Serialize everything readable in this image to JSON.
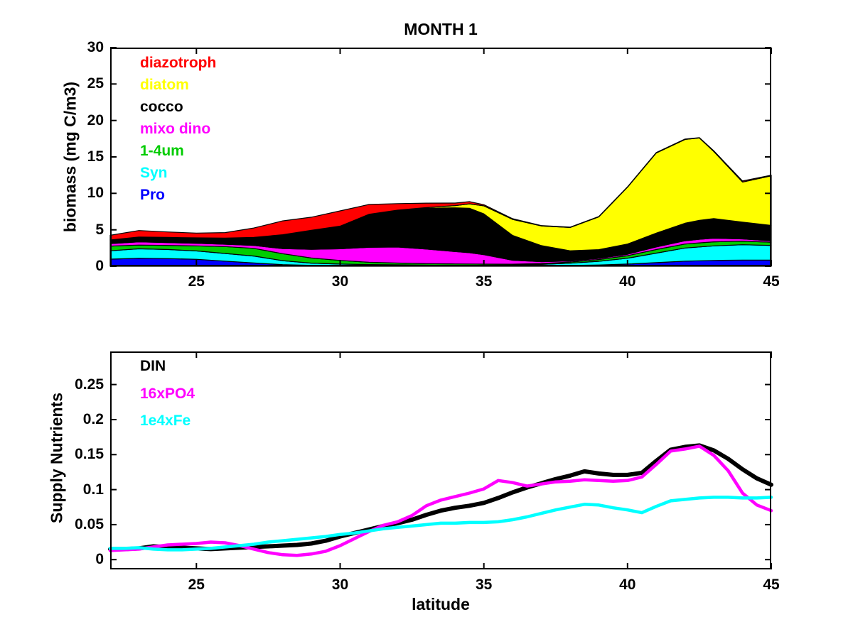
{
  "figure": {
    "background": "#FFFFFF",
    "frame_color": "#000000"
  },
  "chart_data": [
    {
      "type": "area",
      "stacked": true,
      "title": "MONTH 1",
      "ylabel": "biomass (mg C/m3)",
      "xlabel": "",
      "xlim": [
        22,
        45
      ],
      "ylim": [
        0,
        30
      ],
      "grid": false,
      "legend_position": "upper-left",
      "xticks": [
        25,
        30,
        35,
        40,
        45
      ],
      "xtick_labels": [
        "25",
        "30",
        "35",
        "40",
        "45"
      ],
      "yticks": [
        0,
        5,
        10,
        15,
        20,
        25,
        30
      ],
      "ytick_labels": [
        "0",
        "5",
        "10",
        "15",
        "20",
        "25",
        "30"
      ],
      "edge_color": "#000000",
      "x": [
        22,
        23,
        24,
        25,
        26,
        27,
        28,
        29,
        30,
        31,
        32,
        33,
        34,
        34.5,
        35,
        36,
        37,
        38,
        39,
        40,
        41,
        42,
        42.5,
        43,
        44,
        45
      ],
      "series": [
        {
          "name": "Pro",
          "color": "#0000FF",
          "values": [
            0.97,
            1.1,
            1.05,
            0.95,
            0.7,
            0.45,
            0.22,
            0.13,
            0.1,
            0.08,
            0.07,
            0.06,
            0.06,
            0.06,
            0.06,
            0.06,
            0.08,
            0.12,
            0.18,
            0.3,
            0.5,
            0.7,
            0.75,
            0.8,
            0.85,
            0.85
          ]
        },
        {
          "name": "Syn",
          "color": "#00FFFF",
          "values": [
            1.15,
            1.3,
            1.25,
            1.15,
            1.05,
            0.95,
            0.55,
            0.3,
            0.2,
            0.15,
            0.12,
            0.1,
            0.08,
            0.08,
            0.08,
            0.1,
            0.18,
            0.3,
            0.5,
            0.8,
            1.3,
            1.8,
            1.9,
            2.0,
            2.1,
            2.0
          ]
        },
        {
          "name": "1-4um",
          "color": "#00CC00",
          "values": [
            0.65,
            0.5,
            0.55,
            0.7,
            0.95,
            1.05,
            0.95,
            0.7,
            0.5,
            0.32,
            0.25,
            0.2,
            0.18,
            0.17,
            0.15,
            0.12,
            0.12,
            0.15,
            0.25,
            0.35,
            0.5,
            0.55,
            0.55,
            0.55,
            0.5,
            0.45
          ]
        },
        {
          "name": "mixo dino",
          "color": "#FF00FF",
          "values": [
            0.33,
            0.45,
            0.4,
            0.35,
            0.32,
            0.4,
            0.7,
            1.2,
            1.6,
            2.05,
            2.2,
            2.0,
            1.7,
            1.55,
            1.3,
            0.55,
            0.25,
            0.15,
            0.15,
            0.2,
            0.35,
            0.45,
            0.5,
            0.5,
            0.3,
            0.2
          ]
        },
        {
          "name": "cocco",
          "color": "#000000",
          "values": [
            0.5,
            0.65,
            0.7,
            0.75,
            0.85,
            1.1,
            1.9,
            2.6,
            3.1,
            4.5,
            5.0,
            5.6,
            6.0,
            6.1,
            5.6,
            3.4,
            2.2,
            1.4,
            1.2,
            1.4,
            1.9,
            2.4,
            2.6,
            2.7,
            2.3,
            2.1
          ]
        },
        {
          "name": "diatom",
          "color": "#FFFF00",
          "values": [
            0,
            0,
            0,
            0,
            0,
            0,
            0,
            0,
            0,
            0.02,
            0.05,
            0.1,
            0.3,
            0.6,
            1.1,
            2.2,
            2.7,
            3.2,
            4.5,
            7.8,
            11.0,
            11.5,
            11.3,
            9.2,
            5.5,
            6.8
          ]
        },
        {
          "name": "diazotroph",
          "color": "#FF0000",
          "values": [
            0.65,
            0.9,
            0.75,
            0.65,
            0.75,
            1.3,
            1.9,
            1.8,
            2.1,
            1.35,
            0.9,
            0.6,
            0.35,
            0.3,
            0.15,
            0.1,
            0.05,
            0.05,
            0.05,
            0.05,
            0.05,
            0.05,
            0.05,
            0.1,
            0.15,
            0.1
          ]
        }
      ],
      "legend": [
        {
          "label": "diazotroph",
          "color": "#FF0000"
        },
        {
          "label": "diatom",
          "color": "#FFFF00"
        },
        {
          "label": "cocco",
          "color": "#000000"
        },
        {
          "label": "mixo dino",
          "color": "#FF00FF"
        },
        {
          "label": "1-4um",
          "color": "#00CC00"
        },
        {
          "label": "Syn",
          "color": "#00FFFF"
        },
        {
          "label": "Pro",
          "color": "#0000FF"
        }
      ]
    },
    {
      "type": "line",
      "title": "",
      "ylabel": "Supply Nutrients",
      "xlabel": "latitude",
      "xlim": [
        22,
        45
      ],
      "ylim": [
        -0.014,
        0.2973
      ],
      "grid": false,
      "legend_position": "upper-left",
      "xticks": [
        25,
        30,
        35,
        40,
        45
      ],
      "xtick_labels": [
        "25",
        "30",
        "35",
        "40",
        "45"
      ],
      "yticks": [
        0,
        0.05,
        0.1,
        0.15,
        0.2,
        0.25
      ],
      "ytick_labels": [
        "0",
        "0.05",
        "0.1",
        "0.15",
        "0.2",
        "0.25"
      ],
      "x": [
        22,
        22.5,
        23,
        23.5,
        24,
        24.5,
        25,
        25.5,
        26,
        26.5,
        27,
        27.5,
        28,
        28.5,
        29,
        29.5,
        30,
        30.5,
        31,
        31.5,
        32,
        32.5,
        33,
        33.5,
        34,
        34.5,
        35,
        35.5,
        36,
        36.5,
        37,
        37.5,
        38,
        38.5,
        39,
        39.5,
        40,
        40.5,
        41,
        41.5,
        42,
        42.5,
        43,
        43.5,
        44,
        44.5,
        45
      ],
      "series": [
        {
          "name": "DIN",
          "color": "#000000",
          "line_width": 6,
          "values": [
            0.015,
            0.015,
            0.016,
            0.019,
            0.018,
            0.017,
            0.016,
            0.015,
            0.016,
            0.017,
            0.018,
            0.019,
            0.02,
            0.021,
            0.023,
            0.027,
            0.033,
            0.038,
            0.043,
            0.048,
            0.052,
            0.057,
            0.064,
            0.07,
            0.074,
            0.077,
            0.081,
            0.088,
            0.096,
            0.103,
            0.109,
            0.115,
            0.12,
            0.126,
            0.123,
            0.121,
            0.121,
            0.124,
            0.141,
            0.157,
            0.161,
            0.163,
            0.156,
            0.144,
            0.129,
            0.116,
            0.107
          ]
        },
        {
          "name": "16xPO4",
          "color": "#FF00FF",
          "line_width": 4.5,
          "values": [
            0.013,
            0.014,
            0.015,
            0.018,
            0.021,
            0.022,
            0.023,
            0.025,
            0.024,
            0.02,
            0.015,
            0.01,
            0.007,
            0.006,
            0.008,
            0.012,
            0.02,
            0.03,
            0.04,
            0.049,
            0.054,
            0.063,
            0.077,
            0.085,
            0.09,
            0.095,
            0.101,
            0.113,
            0.11,
            0.105,
            0.108,
            0.111,
            0.112,
            0.114,
            0.113,
            0.112,
            0.113,
            0.118,
            0.136,
            0.155,
            0.158,
            0.162,
            0.149,
            0.127,
            0.095,
            0.078,
            0.07
          ]
        },
        {
          "name": "1e4xFe",
          "color": "#00FFFF",
          "line_width": 4.5,
          "values": [
            0.016,
            0.016,
            0.017,
            0.015,
            0.014,
            0.014,
            0.015,
            0.016,
            0.018,
            0.02,
            0.022,
            0.025,
            0.027,
            0.029,
            0.031,
            0.033,
            0.036,
            0.038,
            0.041,
            0.044,
            0.046,
            0.048,
            0.05,
            0.052,
            0.052,
            0.053,
            0.053,
            0.054,
            0.057,
            0.061,
            0.066,
            0.071,
            0.075,
            0.079,
            0.078,
            0.074,
            0.071,
            0.067,
            0.076,
            0.084,
            0.086,
            0.088,
            0.089,
            0.089,
            0.088,
            0.088,
            0.089
          ]
        }
      ],
      "legend": [
        {
          "label": "DIN",
          "color": "#000000"
        },
        {
          "label": "16xPO4",
          "color": "#FF00FF"
        },
        {
          "label": "1e4xFe",
          "color": "#00FFFF"
        }
      ]
    }
  ]
}
